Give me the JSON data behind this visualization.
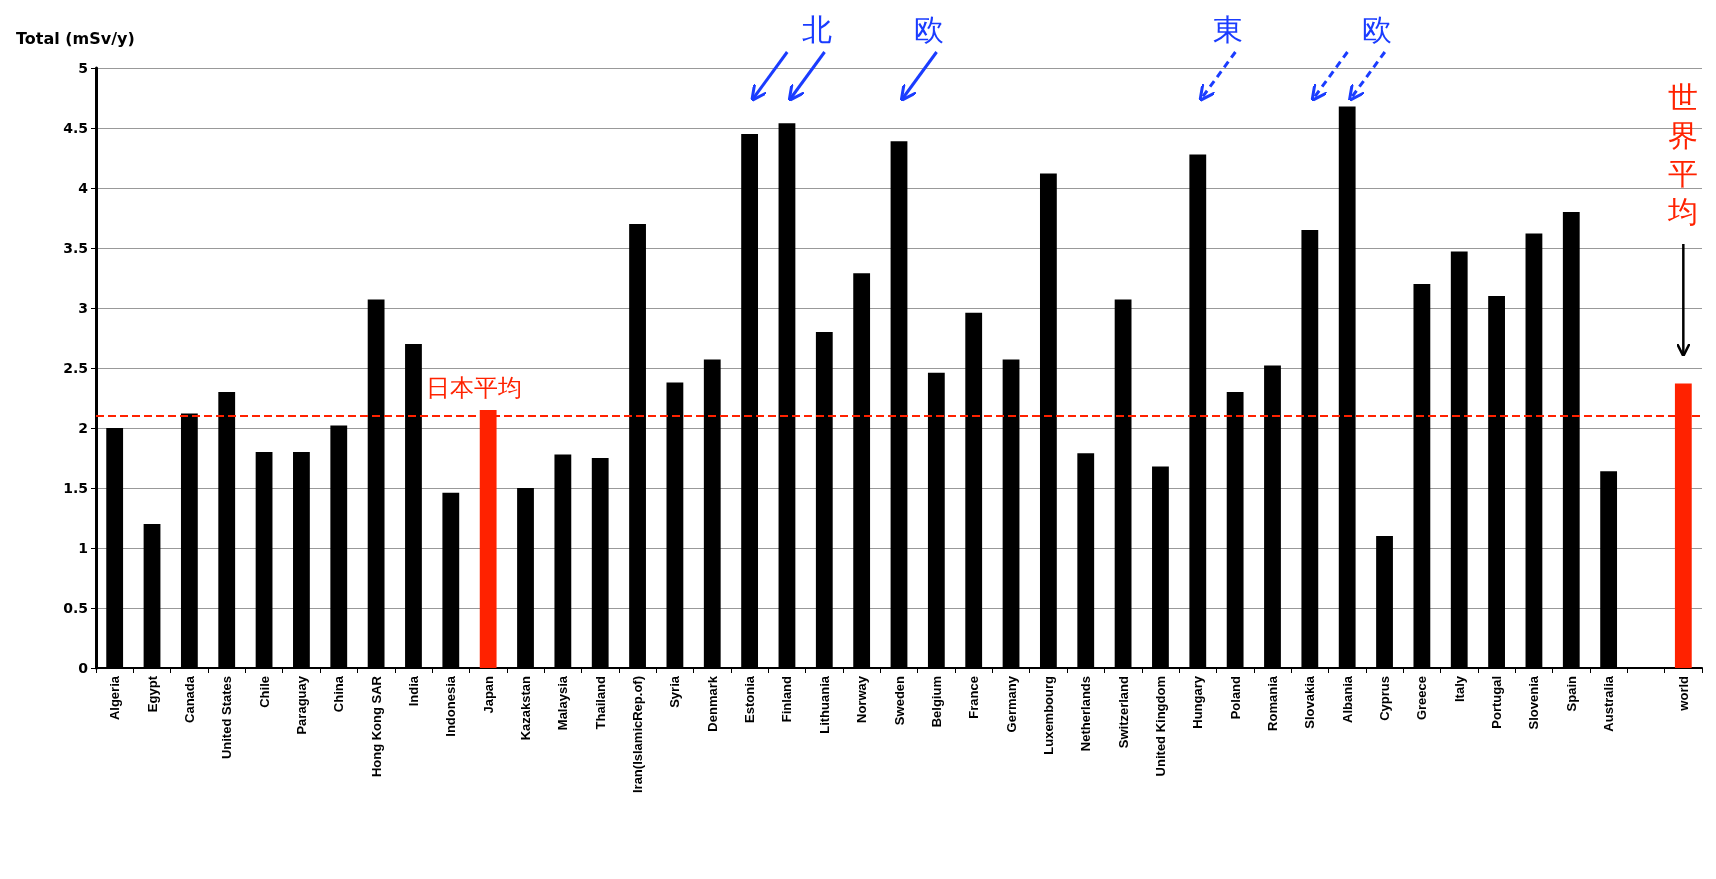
{
  "chart_data": {
    "type": "bar",
    "ylabel": "Total (mSv/y)",
    "categories": [
      "Algeria",
      "Egypt",
      "Canada",
      "United States",
      "Chile",
      "Paraguay",
      "China",
      "Hong Kong SAR",
      "India",
      "Indonesia",
      "Japan",
      "Kazakstan",
      "Malaysia",
      "Thailand",
      "Iran(IslamicRep.of)",
      "Syria",
      "Denmark",
      "Estonia",
      "Finland",
      "Lithuania",
      "Norway",
      "Sweden",
      "Belgium",
      "France",
      "Germany",
      "Luxembourg",
      "Netherlands",
      "Switzerland",
      "United Kingdom",
      "Hungary",
      "Poland",
      "Romania",
      "Slovakia",
      "Albania",
      "Cyprus",
      "Greece",
      "Italy",
      "Portugal",
      "Slovenia",
      "Spain",
      "Australia",
      null,
      "world"
    ],
    "values": [
      2.0,
      1.2,
      2.12,
      2.3,
      1.8,
      1.8,
      2.02,
      3.07,
      2.7,
      1.46,
      2.15,
      1.5,
      1.78,
      1.75,
      3.7,
      2.38,
      2.57,
      4.45,
      4.54,
      2.8,
      3.29,
      4.39,
      2.46,
      2.96,
      2.57,
      4.12,
      1.79,
      3.07,
      1.68,
      4.28,
      2.3,
      2.52,
      3.65,
      4.68,
      1.1,
      3.2,
      3.47,
      3.1,
      3.62,
      3.8,
      1.64,
      null,
      2.37
    ],
    "colors": [
      "#000000",
      "#000000",
      "#000000",
      "#000000",
      "#000000",
      "#000000",
      "#000000",
      "#000000",
      "#000000",
      "#000000",
      "#ff2200",
      "#000000",
      "#000000",
      "#000000",
      "#000000",
      "#000000",
      "#000000",
      "#000000",
      "#000000",
      "#000000",
      "#000000",
      "#000000",
      "#000000",
      "#000000",
      "#000000",
      "#000000",
      "#000000",
      "#000000",
      "#000000",
      "#000000",
      "#000000",
      "#000000",
      "#000000",
      "#000000",
      "#000000",
      "#000000",
      "#000000",
      "#000000",
      "#000000",
      "#000000",
      "#000000",
      "#000000",
      "#ff2200"
    ],
    "ylim": [
      0,
      5
    ],
    "yticks": [
      0,
      0.5,
      1,
      1.5,
      2,
      2.5,
      3,
      3.5,
      4,
      4.5,
      5
    ],
    "grid": "y",
    "ref_lines": [
      {
        "axis": "y",
        "value": 2.1,
        "label": "日本平均",
        "color": "#ff2200",
        "line_style": "dashed"
      }
    ],
    "annotations": [
      "北",
      "欧",
      "東",
      "欧",
      "世界平均"
    ]
  }
}
